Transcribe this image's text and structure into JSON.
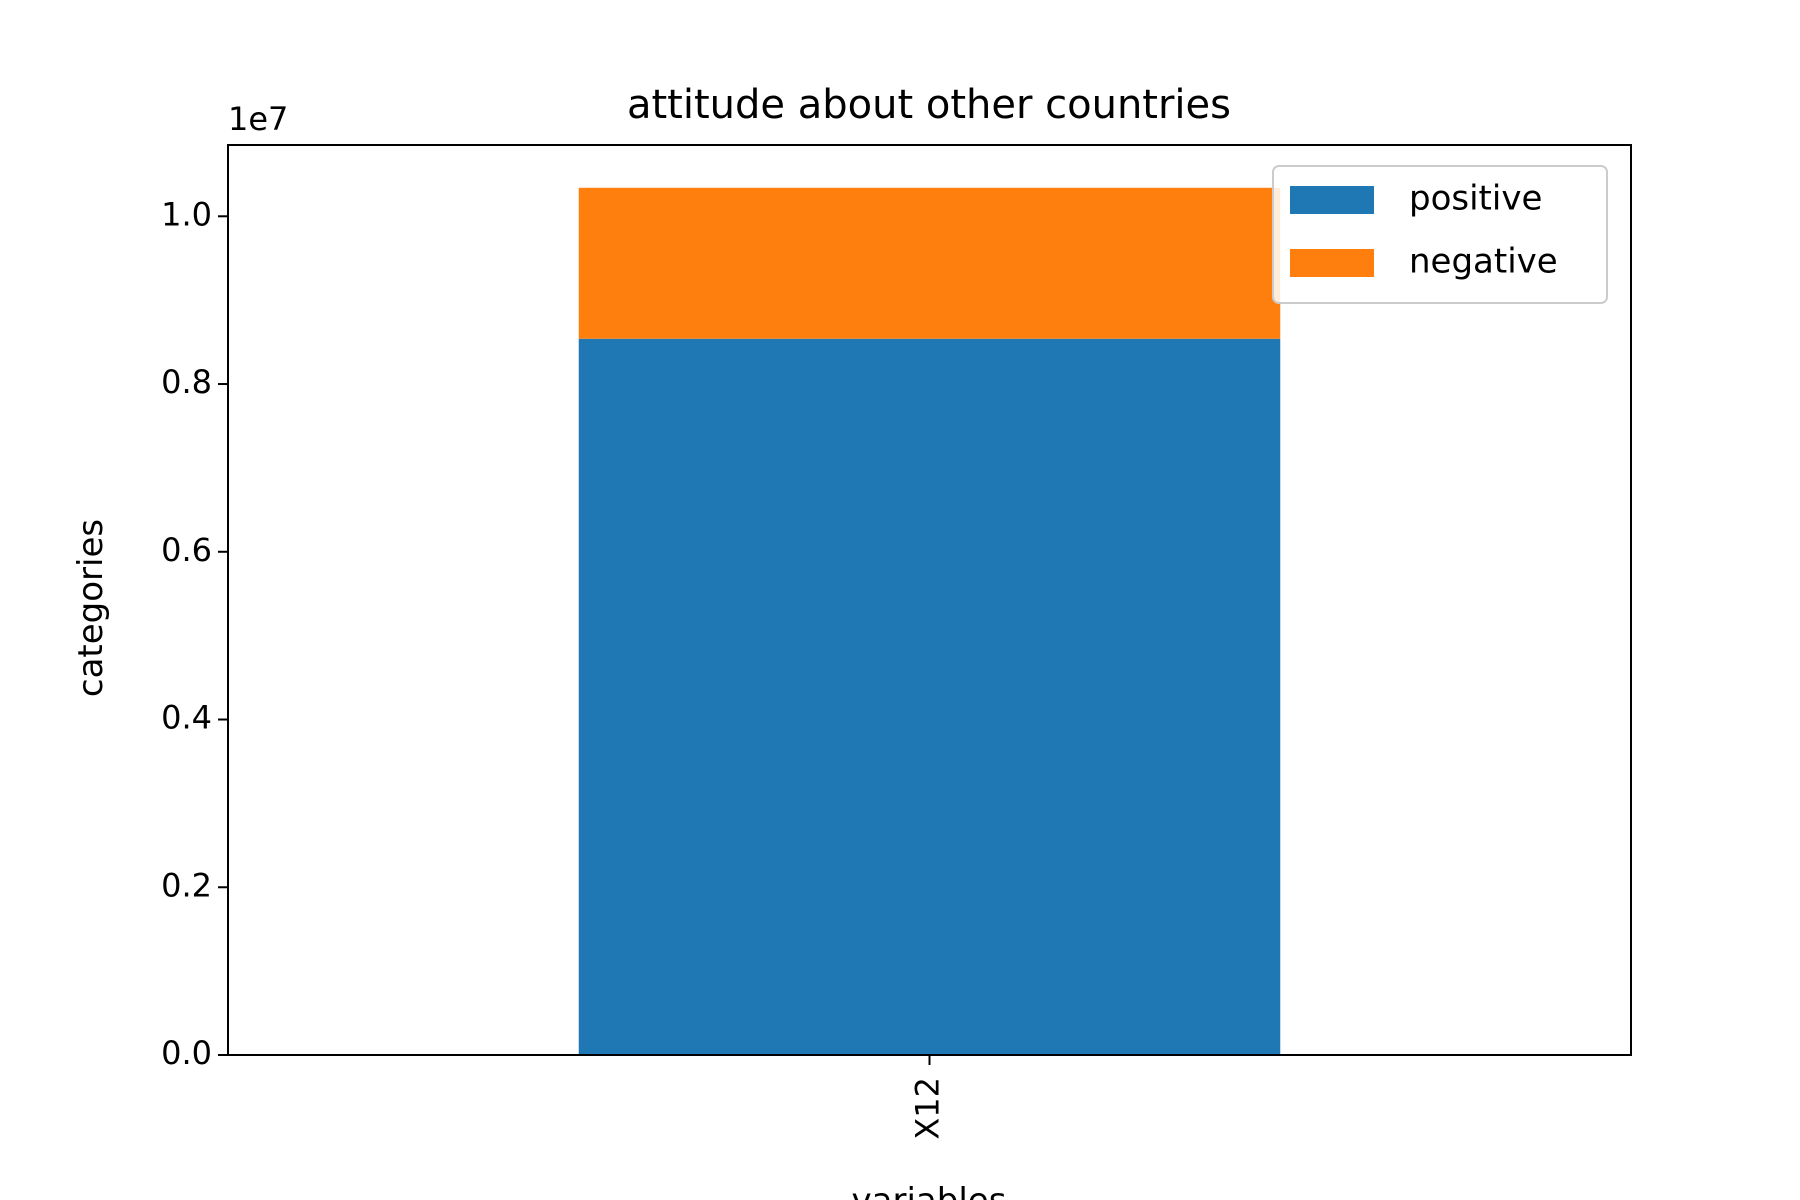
{
  "chart_data": {
    "type": "bar",
    "stacked": true,
    "title": "attitude about other countries",
    "xlabel": "variables",
    "ylabel": "categories",
    "categories": [
      "X12"
    ],
    "series": [
      {
        "name": "positive",
        "values": [
          8540000
        ],
        "color": "#1f77b4"
      },
      {
        "name": "negative",
        "values": [
          1800000
        ],
        "color": "#ff7f0e"
      }
    ],
    "ylim": [
      0,
      10850000
    ],
    "yticks": [
      0,
      2000000,
      4000000,
      6000000,
      8000000,
      10000000
    ],
    "ytick_labels": [
      "0.0",
      "0.2",
      "0.4",
      "0.6",
      "0.8",
      "1.0"
    ],
    "offset_text": "1e7",
    "legend_position": "top-right",
    "grid": false
  }
}
